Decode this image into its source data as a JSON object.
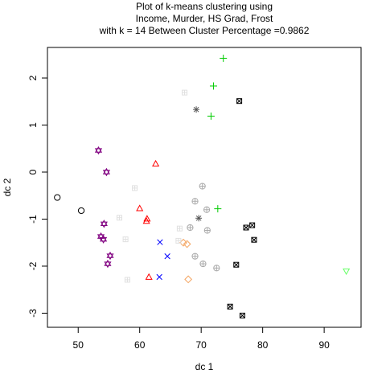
{
  "chart_data": {
    "type": "scatter",
    "title_lines": [
      "Plot of k-means clustering using",
      "Income, Murder, HS Grad, Frost",
      "with  k = 14 Between Cluster Percentage =0.9862"
    ],
    "xlabel": "dc 1",
    "ylabel": "dc 2",
    "xlim": [
      45.0,
      96.0
    ],
    "ylim": [
      -3.3,
      2.65
    ],
    "xticks": [
      50,
      60,
      70,
      80,
      90
    ],
    "yticks": [
      -3,
      -2,
      -1,
      0,
      1,
      2
    ],
    "grid": false,
    "legend": "none",
    "series": [
      {
        "cluster": 1,
        "symbol": "circle",
        "color": "#000000",
        "points": [
          [
            46.6,
            -0.54
          ],
          [
            50.5,
            -0.82
          ]
        ]
      },
      {
        "cluster": 2,
        "symbol": "triangle",
        "color": "#ff0000",
        "points": [
          [
            62.6,
            0.17
          ],
          [
            60.0,
            -0.78
          ],
          [
            61.2,
            -1.0
          ],
          [
            61.1,
            -1.05
          ],
          [
            61.5,
            -2.24
          ]
        ]
      },
      {
        "cluster": 3,
        "symbol": "plus",
        "color": "#00cc00",
        "points": [
          [
            73.6,
            2.42
          ],
          [
            72.0,
            1.83
          ],
          [
            71.6,
            1.19
          ],
          [
            72.7,
            -0.78
          ]
        ]
      },
      {
        "cluster": 4,
        "symbol": "cross",
        "color": "#0000ff",
        "points": [
          [
            63.3,
            -1.49
          ],
          [
            64.5,
            -1.79
          ],
          [
            63.2,
            -2.23
          ]
        ]
      },
      {
        "cluster": 5,
        "symbol": "diamond",
        "color": "#f4a460",
        "points": [
          [
            67.1,
            -1.5
          ],
          [
            67.7,
            -1.53
          ],
          [
            67.9,
            -2.28
          ]
        ]
      },
      {
        "cluster": 6,
        "symbol": "triangle-down",
        "color": "#66ff66",
        "points": [
          [
            93.6,
            -2.1
          ]
        ]
      },
      {
        "cluster": 7,
        "symbol": "boxed-x",
        "color": "#000000",
        "points": [
          [
            76.2,
            1.51
          ],
          [
            78.3,
            -1.13
          ],
          [
            77.3,
            -1.18
          ],
          [
            78.6,
            -1.44
          ],
          [
            75.7,
            -1.97
          ],
          [
            74.7,
            -2.86
          ],
          [
            76.7,
            -3.05
          ]
        ]
      },
      {
        "cluster": 8,
        "symbol": "asterisk",
        "color": "#555555",
        "points": [
          [
            69.2,
            1.33
          ],
          [
            69.6,
            -0.98
          ]
        ]
      },
      {
        "cluster": 9,
        "symbol": "circle-x",
        "color": "#aaaaaa",
        "points": [
          [
            69.0,
            -0.62
          ],
          [
            70.2,
            -0.3
          ],
          [
            70.9,
            -0.8
          ],
          [
            71.0,
            -1.24
          ],
          [
            70.3,
            -1.95
          ],
          [
            72.5,
            -2.04
          ],
          [
            69.0,
            -1.79
          ],
          [
            68.2,
            -1.18
          ]
        ]
      },
      {
        "cluster": 10,
        "symbol": "hexagram",
        "color": "#800080",
        "points": [
          [
            53.3,
            0.46
          ],
          [
            54.6,
            0.0
          ],
          [
            54.2,
            -1.1
          ],
          [
            53.7,
            -1.37
          ],
          [
            54.1,
            -1.43
          ],
          [
            55.2,
            -1.78
          ],
          [
            54.8,
            -1.95
          ]
        ]
      },
      {
        "cluster": 11,
        "symbol": "square-plus",
        "color": "#e0e0e0",
        "points": [
          [
            67.3,
            1.69
          ],
          [
            59.2,
            -0.34
          ],
          [
            56.7,
            -0.97
          ],
          [
            57.7,
            -1.43
          ],
          [
            58.0,
            -2.29
          ],
          [
            66.3,
            -1.46
          ],
          [
            66.5,
            -1.2
          ]
        ]
      }
    ]
  }
}
